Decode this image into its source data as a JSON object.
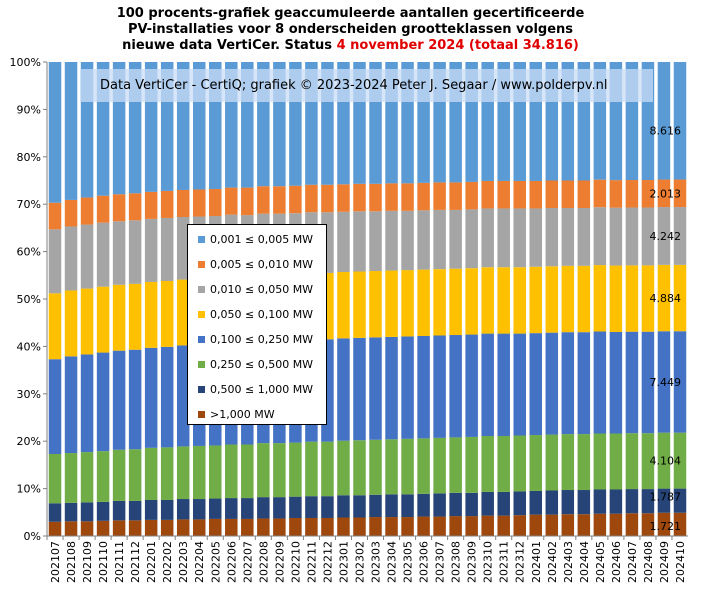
{
  "title": {
    "line1": "100 procents-grafiek geaccumuleerde aantallen gecertificeerde",
    "line2": "PV-installaties voor 8 onderscheiden grootteklassen volgens",
    "line3_prefix": "nieuwe data VertiCer. Status ",
    "line3_highlight": "4 november 2024 (totaal 34.816)"
  },
  "watermark": "Data VertiCer - CertiQ; grafiek © 2023-2024 Peter J. Segaar / www.polderpv.nl",
  "legend": [
    {
      "label": "0,001 ≤  0,005 MW",
      "color": "#5b9bd5"
    },
    {
      "label": "0,005 ≤  0,010 MW",
      "color": "#ed7d31"
    },
    {
      "label": "0,010 ≤  0,050 MW",
      "color": "#a5a5a5"
    },
    {
      "label": "0,050 ≤  0,100 MW",
      "color": "#ffc000"
    },
    {
      "label": "0,100 ≤  0,250 MW",
      "color": "#4472c4"
    },
    {
      "label": "0,250 ≤  0,500 MW",
      "color": "#70ad47"
    },
    {
      "label": "0,500 ≤  1,000 MW",
      "color": "#264478"
    },
    {
      "label": ">1,000 MW",
      "color": "#9e480e"
    }
  ],
  "chart_data": {
    "type": "bar",
    "stacked": true,
    "percent": true,
    "ylim": [
      0,
      100
    ],
    "yticks": [
      "0%",
      "10%",
      "20%",
      "30%",
      "40%",
      "50%",
      "60%",
      "70%",
      "80%",
      "90%",
      "100%"
    ],
    "categories": [
      "202107",
      "202108",
      "202109",
      "202110",
      "202111",
      "202112",
      "202201",
      "202202",
      "202203",
      "202204",
      "202205",
      "202206",
      "202207",
      "202208",
      "202209",
      "202210",
      "202211",
      "202212",
      "202301",
      "202302",
      "202303",
      "202304",
      "202305",
      "202306",
      "202307",
      "202308",
      "202309",
      "202310",
      "202311",
      "202312",
      "202401",
      "202402",
      "202403",
      "202404",
      "202405",
      "202406",
      "202407",
      "202408",
      "202409",
      "202410"
    ],
    "series": [
      {
        "name": ">1,000 MW",
        "color": "#9e480e",
        "values": [
          3.0,
          3.1,
          3.1,
          3.2,
          3.3,
          3.3,
          3.4,
          3.4,
          3.5,
          3.5,
          3.6,
          3.6,
          3.6,
          3.7,
          3.7,
          3.8,
          3.8,
          3.8,
          3.9,
          3.9,
          4.0,
          4.0,
          4.0,
          4.1,
          4.1,
          4.2,
          4.2,
          4.3,
          4.3,
          4.4,
          4.5,
          4.5,
          4.6,
          4.6,
          4.7,
          4.7,
          4.8,
          4.8,
          4.9,
          4.9
        ]
      },
      {
        "name": "0,500 ≤  1,000 MW",
        "color": "#264478",
        "values": [
          3.9,
          3.9,
          4.0,
          4.0,
          4.1,
          4.1,
          4.2,
          4.2,
          4.3,
          4.3,
          4.3,
          4.4,
          4.4,
          4.5,
          4.5,
          4.5,
          4.6,
          4.6,
          4.7,
          4.7,
          4.7,
          4.8,
          4.8,
          4.8,
          4.9,
          4.9,
          4.9,
          5.0,
          5.0,
          5.0,
          5.0,
          5.1,
          5.1,
          5.1,
          5.1,
          5.1,
          5.1,
          5.1,
          5.1,
          5.1
        ]
      },
      {
        "name": "0,250 ≤  0,500 MW",
        "color": "#70ad47",
        "values": [
          10.4,
          10.5,
          10.6,
          10.7,
          10.8,
          10.9,
          11.0,
          11.1,
          11.1,
          11.2,
          11.2,
          11.3,
          11.3,
          11.4,
          11.4,
          11.4,
          11.5,
          11.5,
          11.5,
          11.6,
          11.6,
          11.6,
          11.7,
          11.7,
          11.7,
          11.7,
          11.8,
          11.8,
          11.8,
          11.8,
          11.8,
          11.8,
          11.8,
          11.8,
          11.8,
          11.8,
          11.8,
          11.8,
          11.8,
          11.8
        ]
      },
      {
        "name": "0,100 ≤  0,250 MW",
        "color": "#4472c4",
        "values": [
          20.0,
          20.4,
          20.6,
          20.8,
          20.9,
          21.0,
          21.1,
          21.2,
          21.3,
          21.3,
          21.4,
          21.5,
          21.5,
          21.5,
          21.6,
          21.6,
          21.6,
          21.6,
          21.6,
          21.6,
          21.6,
          21.6,
          21.6,
          21.6,
          21.6,
          21.6,
          21.6,
          21.6,
          21.6,
          21.5,
          21.5,
          21.5,
          21.5,
          21.5,
          21.5,
          21.4,
          21.4,
          21.4,
          21.4,
          21.4
        ]
      },
      {
        "name": "0,050 ≤  0,100 MW",
        "color": "#ffc000",
        "values": [
          13.9,
          13.9,
          13.9,
          13.9,
          13.9,
          13.9,
          13.9,
          13.9,
          13.9,
          14.0,
          14.0,
          14.0,
          14.0,
          14.0,
          14.0,
          14.0,
          14.0,
          14.0,
          14.0,
          14.0,
          14.0,
          14.0,
          14.0,
          14.0,
          14.0,
          14.0,
          14.0,
          14.0,
          14.0,
          14.0,
          14.0,
          14.0,
          14.0,
          14.0,
          14.0,
          14.0,
          14.0,
          14.0,
          14.0,
          14.0
        ]
      },
      {
        "name": "0,010 ≤  0,050 MW",
        "color": "#a5a5a5",
        "values": [
          13.5,
          13.5,
          13.5,
          13.5,
          13.4,
          13.4,
          13.3,
          13.3,
          13.2,
          13.1,
          13.0,
          13.0,
          12.9,
          12.9,
          12.8,
          12.8,
          12.8,
          12.8,
          12.7,
          12.7,
          12.6,
          12.6,
          12.5,
          12.5,
          12.5,
          12.4,
          12.4,
          12.4,
          12.4,
          12.4,
          12.3,
          12.3,
          12.2,
          12.2,
          12.2,
          12.2,
          12.2,
          12.2,
          12.2,
          12.2
        ]
      },
      {
        "name": "0,005 ≤  0,010 MW",
        "color": "#ed7d31",
        "values": [
          5.6,
          5.6,
          5.7,
          5.7,
          5.7,
          5.7,
          5.7,
          5.7,
          5.7,
          5.7,
          5.7,
          5.7,
          5.8,
          5.8,
          5.8,
          5.8,
          5.8,
          5.8,
          5.8,
          5.8,
          5.8,
          5.8,
          5.8,
          5.8,
          5.8,
          5.8,
          5.8,
          5.8,
          5.8,
          5.8,
          5.8,
          5.8,
          5.8,
          5.8,
          5.8,
          5.8,
          5.8,
          5.8,
          5.8,
          5.8
        ]
      },
      {
        "name": "0,001 ≤  0,005 MW",
        "color": "#5b9bd5",
        "values": [
          29.7,
          29.1,
          28.6,
          28.2,
          27.9,
          27.7,
          27.4,
          27.2,
          27.0,
          26.9,
          26.8,
          26.5,
          26.5,
          26.2,
          26.2,
          26.1,
          25.9,
          25.9,
          25.8,
          25.7,
          25.7,
          25.6,
          25.6,
          25.5,
          25.4,
          25.4,
          25.3,
          25.1,
          25.1,
          25.1,
          25.1,
          25.0,
          25.0,
          25.0,
          24.8,
          24.9,
          24.9,
          24.9,
          24.8,
          24.8
        ]
      }
    ],
    "end_labels": [
      "1.721",
      "1.787",
      "4.104",
      "7.449",
      "4.884",
      "4.242",
      "2.013",
      "8.616"
    ]
  }
}
